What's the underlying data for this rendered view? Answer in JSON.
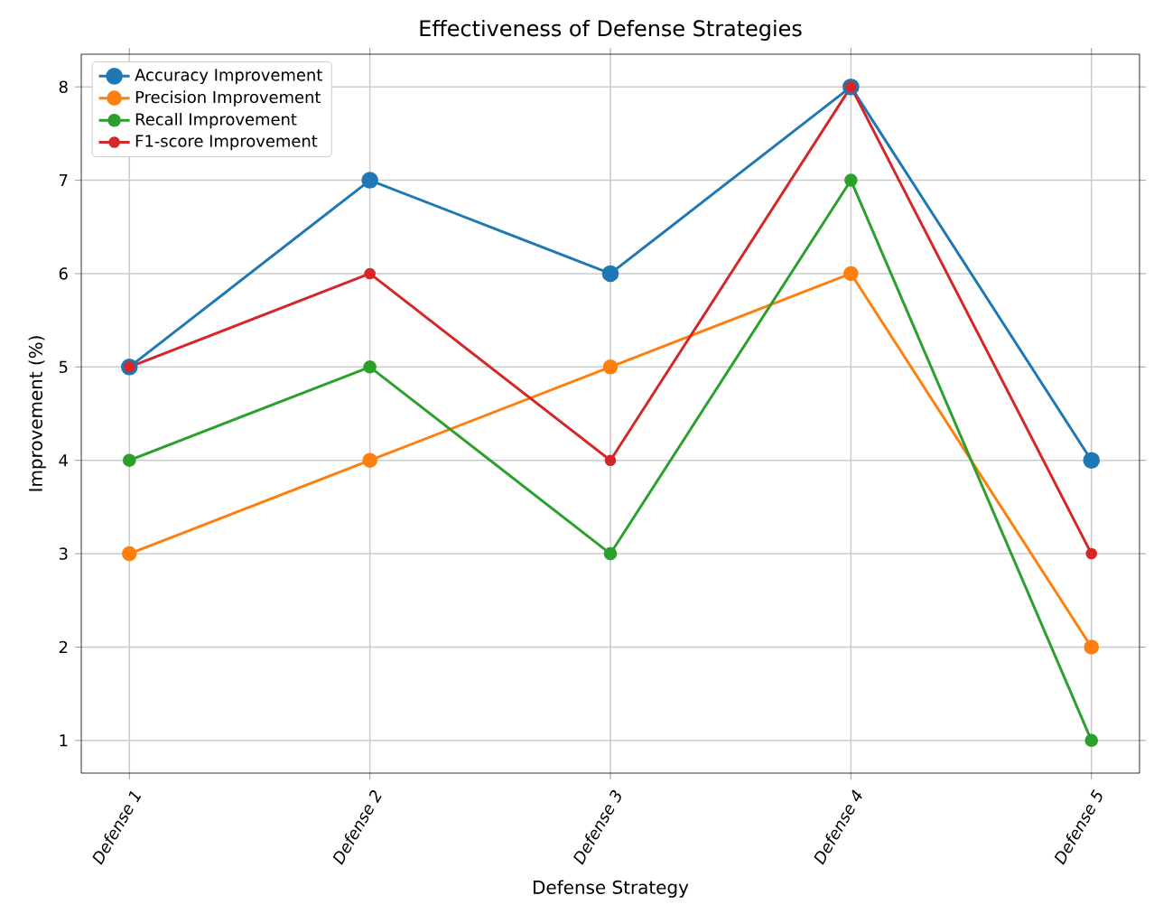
{
  "chart_data": {
    "type": "line",
    "title": "Effectiveness of Defense Strategies",
    "xlabel": "Defense Strategy",
    "ylabel": "Improvement (%)",
    "categories": [
      "Defense 1",
      "Defense 2",
      "Defense 3",
      "Defense 4",
      "Defense 5"
    ],
    "series": [
      {
        "name": "Accuracy Improvement",
        "color": "#1f77b4",
        "values": [
          5,
          7,
          6,
          8,
          4
        ]
      },
      {
        "name": "Precision Improvement",
        "color": "#ff7f0e",
        "values": [
          3,
          4,
          5,
          6,
          2
        ]
      },
      {
        "name": "Recall Improvement",
        "color": "#2ca02c",
        "values": [
          4,
          5,
          3,
          7,
          1
        ]
      },
      {
        "name": "F1-score Improvement",
        "color": "#d62728",
        "values": [
          5,
          6,
          4,
          8,
          3
        ]
      }
    ],
    "ylim": [
      0.65,
      8.35
    ],
    "yticks": [
      1,
      2,
      3,
      4,
      5,
      6,
      7,
      8
    ],
    "grid": true,
    "legend": "top left",
    "marker": "circle",
    "line_style": "solid"
  }
}
